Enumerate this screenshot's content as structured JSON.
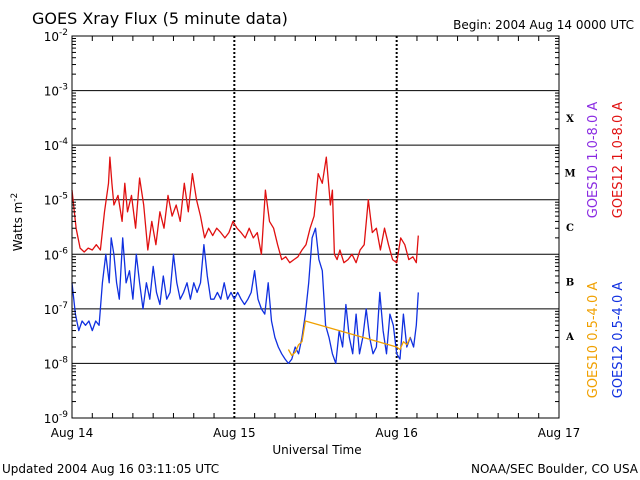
{
  "header": {
    "title": "GOES Xray Flux (5 minute data)",
    "begin": "Begin:  2004 Aug 14 0000 UTC"
  },
  "footer": {
    "updated": "Updated 2004 Aug 16 03:11:05 UTC",
    "source": "NOAA/SEC Boulder, CO USA"
  },
  "colors": {
    "goes10_long": "#8a2be2",
    "goes12_long": "#e01010",
    "goes10_short": "#f0a000",
    "goes12_short": "#1030e0"
  },
  "chart_data": {
    "type": "line",
    "title": "GOES Xray Flux (5 minute data)",
    "xlabel": "Universal Time",
    "ylabel": "Watts m",
    "ylabel_sup": "-2",
    "yscale": "log",
    "ylim": [
      1e-09,
      0.01
    ],
    "xlim": [
      0,
      72
    ],
    "x_units": "hours since 2004 Aug 14 0000 UTC",
    "grid": true,
    "x_ticks": [
      {
        "x": 0,
        "label": "Aug 14"
      },
      {
        "x": 24,
        "label": "Aug 15"
      },
      {
        "x": 48,
        "label": "Aug 16"
      },
      {
        "x": 72,
        "label": "Aug 17"
      }
    ],
    "y_ticks": [
      {
        "exp": -9,
        "base": "10",
        "sup": "-9"
      },
      {
        "exp": -8,
        "base": "10",
        "sup": "-8"
      },
      {
        "exp": -7,
        "base": "10",
        "sup": "-7"
      },
      {
        "exp": -6,
        "base": "10",
        "sup": "-6"
      },
      {
        "exp": -5,
        "base": "10",
        "sup": "-5"
      },
      {
        "exp": -4,
        "base": "10",
        "sup": "-4"
      },
      {
        "exp": -3,
        "base": "10",
        "sup": "-3"
      },
      {
        "exp": -2,
        "base": "10",
        "sup": "-2"
      }
    ],
    "flare_classes": [
      {
        "label": "X",
        "exp": -3.5
      },
      {
        "label": "M",
        "exp": -4.5
      },
      {
        "label": "C",
        "exp": -5.5
      },
      {
        "label": "B",
        "exp": -6.5
      },
      {
        "label": "A",
        "exp": -7.5
      }
    ],
    "series": [
      {
        "name": "GOES12 1.0-8.0 A",
        "color": "#e01010",
        "x": [
          0,
          0.6,
          1.2,
          1.8,
          2.4,
          3.0,
          3.6,
          4.2,
          4.8,
          5.4,
          5.6,
          5.9,
          6.2,
          6.8,
          7.4,
          7.8,
          8.2,
          8.8,
          9.4,
          10.0,
          10.6,
          11.2,
          11.8,
          12.4,
          13.0,
          13.6,
          14.2,
          14.8,
          15.4,
          16.0,
          16.6,
          17.2,
          17.8,
          18.4,
          19.0,
          19.6,
          20.2,
          20.8,
          21.4,
          22.0,
          22.6,
          23.2,
          23.8,
          24.4,
          25.0,
          25.6,
          26.2,
          26.8,
          27.4,
          28.0,
          28.6,
          29.2,
          29.8,
          30.4,
          31.0,
          31.6,
          32.2,
          32.8,
          33.4,
          34.0,
          34.6,
          35.2,
          35.8,
          36.4,
          37.0,
          37.6,
          38.2,
          38.5,
          38.8,
          39.2,
          39.6,
          40.2,
          40.8,
          41.4,
          42.0,
          42.6,
          43.2,
          43.8,
          44.4,
          45.0,
          45.6,
          46.2,
          46.8,
          47.4,
          48.0,
          48.6,
          49.2,
          49.8,
          50.4,
          50.9,
          51.2
        ],
        "y": [
          1.5e-05,
          3e-06,
          1.3e-06,
          1.1e-06,
          1.3e-06,
          1.2e-06,
          1.5e-06,
          1.2e-06,
          6e-06,
          2e-05,
          6e-05,
          2e-05,
          8e-06,
          1.2e-05,
          4e-06,
          2e-05,
          6e-06,
          1.2e-05,
          3e-06,
          2.5e-05,
          8e-06,
          1.2e-06,
          4e-06,
          1.5e-06,
          6e-06,
          3e-06,
          1.2e-05,
          5e-06,
          8e-06,
          4e-06,
          2e-05,
          6e-06,
          3e-05,
          1e-05,
          5e-06,
          2e-06,
          3e-06,
          2.2e-06,
          3e-06,
          2.5e-06,
          2e-06,
          2.5e-06,
          4e-06,
          3e-06,
          2.5e-06,
          2e-06,
          3e-06,
          2e-06,
          2.5e-06,
          1e-06,
          1.5e-05,
          4e-06,
          3e-06,
          1.5e-06,
          8e-07,
          9e-07,
          7e-07,
          8e-07,
          9e-07,
          1.2e-06,
          1.5e-06,
          3e-06,
          5e-06,
          3e-05,
          2e-05,
          6e-05,
          8e-06,
          1.5e-05,
          1e-06,
          8e-07,
          1.2e-06,
          7e-07,
          8e-07,
          1e-06,
          7e-07,
          1.2e-06,
          1.5e-06,
          1e-05,
          2.5e-06,
          3e-06,
          1.2e-06,
          3e-06,
          1.5e-06,
          8e-07,
          7e-07,
          2e-06,
          1.5e-06,
          8e-07,
          9e-07,
          7e-07,
          2.2e-06
        ]
      },
      {
        "name": "GOES12 0.5-4.0 A",
        "color": "#1030e0",
        "x": [
          0,
          0.5,
          1.0,
          1.5,
          2.0,
          2.5,
          3.0,
          3.5,
          4.0,
          4.5,
          5.0,
          5.5,
          5.8,
          6.2,
          6.6,
          7.0,
          7.5,
          8.0,
          8.5,
          9.0,
          9.5,
          10.0,
          10.5,
          11.0,
          11.5,
          12.0,
          12.5,
          13.0,
          13.5,
          14.0,
          14.5,
          15.0,
          15.5,
          16.0,
          16.5,
          17.0,
          17.5,
          18.0,
          18.5,
          19.0,
          19.5,
          20.0,
          20.5,
          21.0,
          21.5,
          22.0,
          22.5,
          23.0,
          23.5,
          24.0,
          24.5,
          25.0,
          25.5,
          26.0,
          26.5,
          27.0,
          27.5,
          28.0,
          28.5,
          29.0,
          29.5,
          30.0,
          30.5,
          31.0,
          31.5,
          32.0,
          32.5,
          33.0,
          33.5,
          34.0,
          34.5,
          35.0,
          35.5,
          36.0,
          36.5,
          37.0,
          37.5,
          38.0,
          38.5,
          39.0,
          39.5,
          40.0,
          40.5,
          41.0,
          41.5,
          42.0,
          42.5,
          43.0,
          43.5,
          44.0,
          44.5,
          45.0,
          45.5,
          46.0,
          46.5,
          47.0,
          47.5,
          48.0,
          48.5,
          49.0,
          49.5,
          50.0,
          50.5,
          50.9,
          51.2
        ],
        "y": [
          3e-07,
          8e-08,
          4e-08,
          6e-08,
          5e-08,
          6e-08,
          4e-08,
          6e-08,
          5e-08,
          3e-07,
          1e-06,
          3e-07,
          2e-06,
          1e-06,
          3e-07,
          1.5e-07,
          2e-06,
          3e-07,
          5e-07,
          1.5e-07,
          1e-06,
          3e-07,
          1e-07,
          3e-07,
          1.5e-07,
          6e-07,
          2e-07,
          1.2e-07,
          4e-07,
          1.5e-07,
          2e-07,
          1e-06,
          3e-07,
          1.5e-07,
          2e-07,
          3e-07,
          1.5e-07,
          3e-07,
          2e-07,
          3e-07,
          1.5e-06,
          4e-07,
          1.5e-07,
          1.5e-07,
          2e-07,
          1.5e-07,
          3e-07,
          1.5e-07,
          2e-07,
          1.5e-07,
          2e-07,
          1.5e-07,
          1.2e-07,
          1.5e-07,
          2e-07,
          5e-07,
          1.5e-07,
          1e-07,
          8e-08,
          3e-07,
          6e-08,
          3e-08,
          2e-08,
          1.5e-08,
          1.2e-08,
          1e-08,
          1.2e-08,
          2e-08,
          1.5e-08,
          3e-08,
          8e-08,
          3e-07,
          2e-06,
          3e-06,
          8e-07,
          5e-07,
          5e-08,
          3e-08,
          1.5e-08,
          1e-08,
          4e-08,
          2e-08,
          1.2e-07,
          3e-08,
          1.5e-08,
          8e-08,
          1.5e-08,
          3e-08,
          1e-07,
          3e-08,
          1.5e-08,
          2e-08,
          2e-07,
          4e-08,
          1.5e-08,
          8e-08,
          5e-08,
          1.5e-08,
          1.2e-08,
          8e-08,
          2e-08,
          3e-08,
          2e-08,
          5e-08,
          2e-07
        ]
      },
      {
        "name": "GOES10 0.5-4.0 A",
        "color": "#f0a000",
        "x": [
          32.0,
          32.5,
          33.0,
          33.5,
          34.0,
          34.5,
          48.0,
          48.5,
          49.0,
          49.5,
          50.0
        ],
        "y": [
          1.8e-08,
          1.4e-08,
          1.6e-08,
          2.2e-08,
          2.5e-08,
          6e-08,
          2e-08,
          1.8e-08,
          2.5e-08,
          2.2e-08,
          3e-08
        ]
      },
      {
        "name": "GOES10 1.0-8.0 A",
        "color": "#8a2be2",
        "x": [],
        "y": []
      }
    ]
  }
}
